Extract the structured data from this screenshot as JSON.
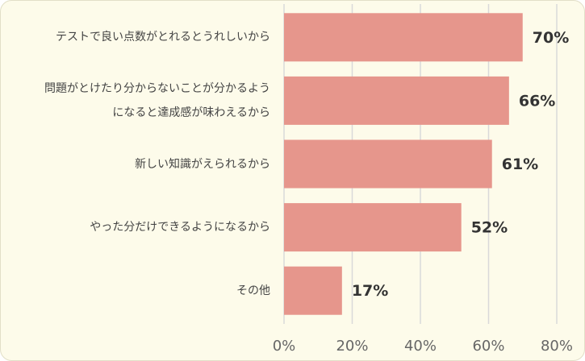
{
  "chart_data": {
    "type": "bar",
    "orientation": "horizontal",
    "categories": [
      "テストで良い点数がとれるとうれしいから",
      "問題がとけたり分からないことが分かるよう\nになると達成感が味わえるから",
      "新しい知識がえられるから",
      "やった分だけできるようになるから",
      "その他"
    ],
    "values": [
      70,
      66,
      61,
      52,
      17
    ],
    "value_labels": [
      "70%",
      "66%",
      "61%",
      "52%",
      "17%"
    ],
    "color": "#e6968c",
    "xlim": [
      0,
      80
    ],
    "xticks": [
      {
        "value": 0,
        "label": "0%"
      },
      {
        "value": 20,
        "label": "20%"
      },
      {
        "value": 40,
        "label": "40%"
      },
      {
        "value": 60,
        "label": "60%"
      },
      {
        "value": 80,
        "label": "80%"
      }
    ],
    "grid": true
  }
}
